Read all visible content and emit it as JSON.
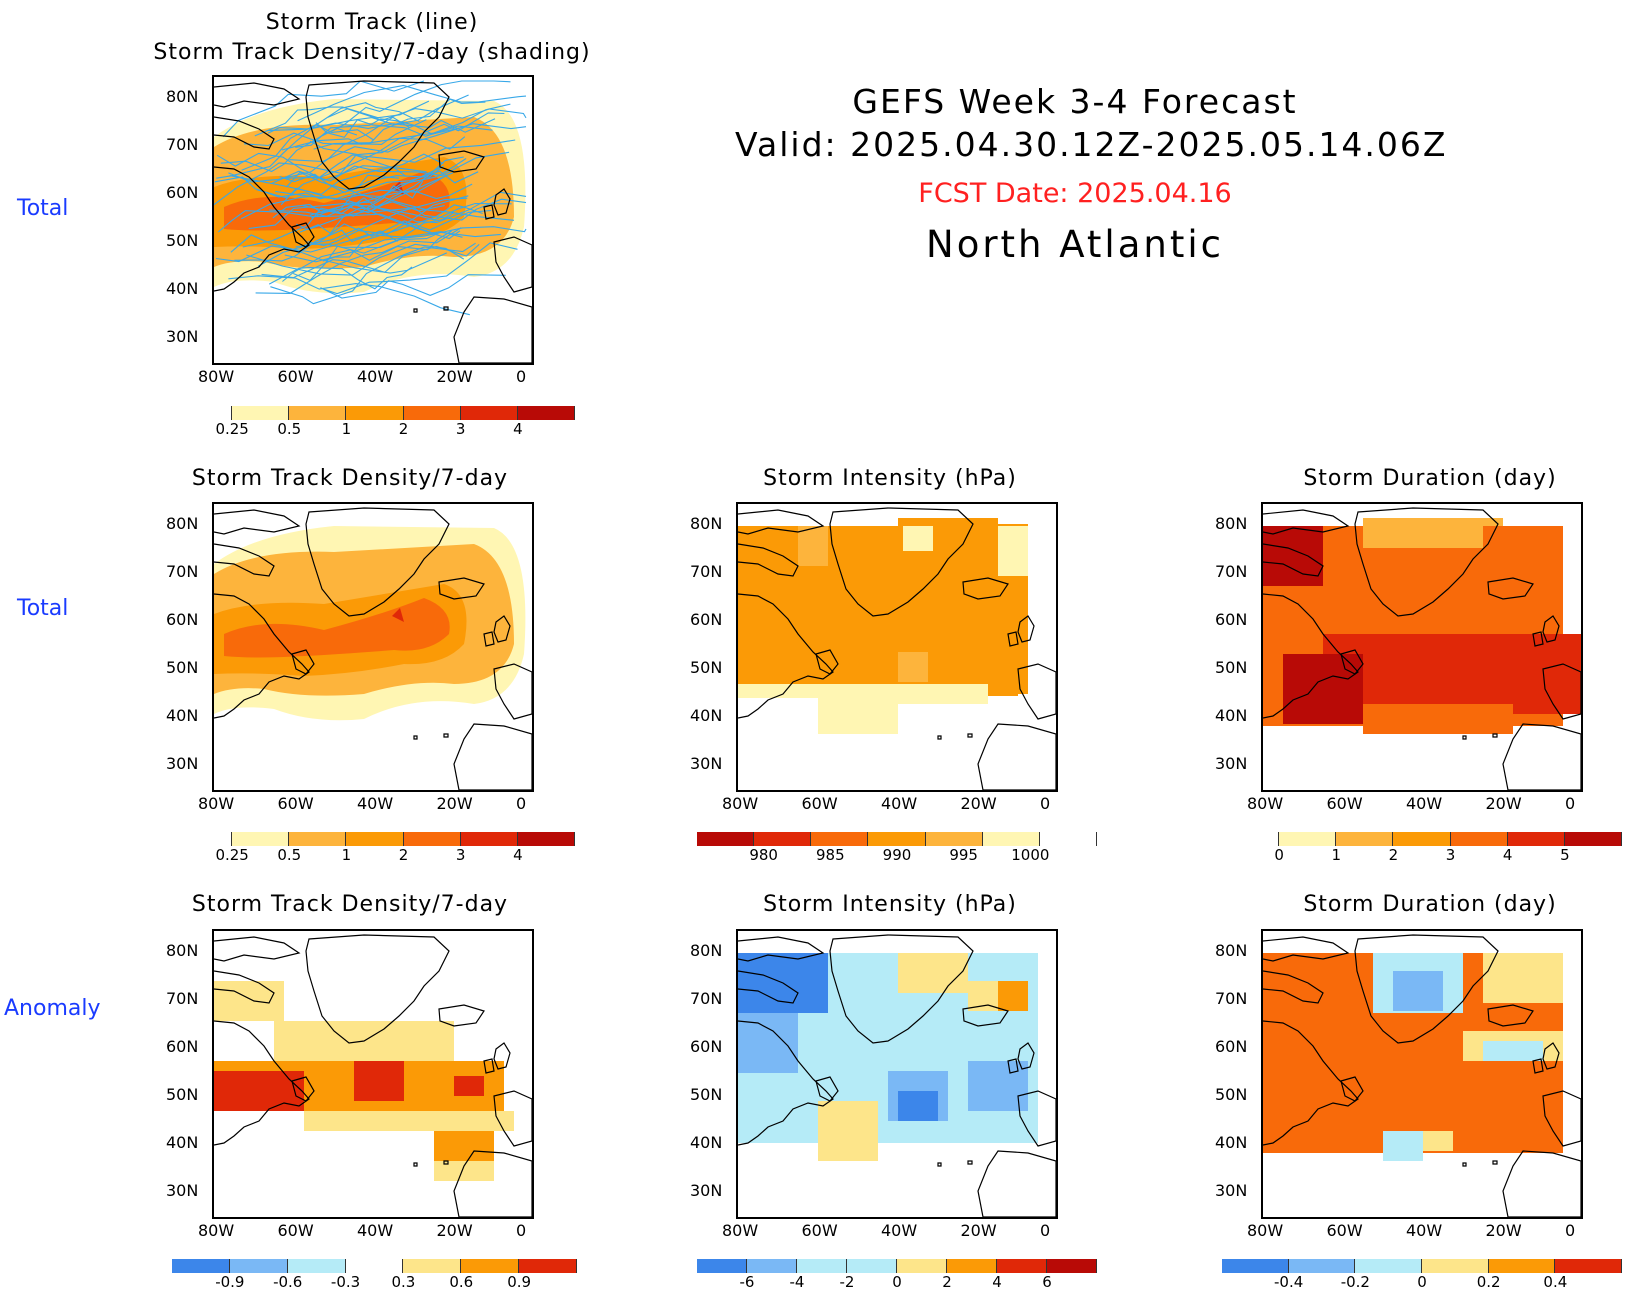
{
  "header": {
    "line1": "GEFS Week 3-4 Forecast",
    "line2": "Valid: 2025.04.30.12Z-2025.05.14.06Z",
    "fcst": "FCST Date: 2025.04.16",
    "region": "North Atlantic"
  },
  "row_labels": {
    "r1": "Total",
    "r2": "Total",
    "r3": "Anomaly"
  },
  "panels": {
    "p1_title_a": "Storm Track (line)",
    "p1_title_b": "Storm Track Density/7-day (shading)",
    "density": "Storm Track Density/7-day",
    "intensity": "Storm Intensity (hPa)",
    "duration": "Storm Duration (day)"
  },
  "axes": {
    "lat": [
      "80N",
      "70N",
      "60N",
      "50N",
      "40N",
      "30N"
    ],
    "lon": [
      "80W",
      "60W",
      "40W",
      "20W",
      "0"
    ]
  },
  "colorbars": {
    "density_total": [
      "0.25",
      "0.5",
      "1",
      "2",
      "3",
      "4"
    ],
    "intensity_total": [
      "980",
      "985",
      "990",
      "995",
      "1000"
    ],
    "duration_total": [
      "0",
      "1",
      "2",
      "3",
      "4",
      "5"
    ],
    "density_anom": [
      "-0.9",
      "-0.6",
      "-0.3",
      "0.3",
      "0.6",
      "0.9"
    ],
    "intensity_anom": [
      "-6",
      "-4",
      "-2",
      "0",
      "2",
      "4",
      "6"
    ],
    "duration_anom": [
      "-0.4",
      "-0.2",
      "0",
      "0.2",
      "0.4"
    ]
  },
  "colors": {
    "yellow_light": "#fff6b3",
    "yellow": "#fde58a",
    "orange_light": "#fdb43c",
    "orange": "#fb9a06",
    "orange_red": "#f86a0a",
    "red": "#e02808",
    "dark_red": "#b80a06",
    "blue_light": "#b5ebf7",
    "blue": "#7ab8f5",
    "blue_dark": "#3c86ea",
    "track_line": "#38a8e8"
  }
}
